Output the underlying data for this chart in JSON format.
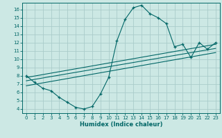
{
  "title": "",
  "xlabel": "Humidex (Indice chaleur)",
  "bg_color": "#cce8e4",
  "grid_color": "#aaccca",
  "line_color": "#006666",
  "xlim": [
    -0.5,
    23.5
  ],
  "ylim": [
    3.5,
    16.8
  ],
  "xticks": [
    0,
    1,
    2,
    3,
    4,
    5,
    6,
    7,
    8,
    9,
    10,
    11,
    12,
    13,
    14,
    15,
    16,
    17,
    18,
    19,
    20,
    21,
    22,
    23
  ],
  "yticks": [
    4,
    5,
    6,
    7,
    8,
    9,
    10,
    11,
    12,
    13,
    14,
    15,
    16
  ],
  "curve_x": [
    0,
    1,
    2,
    3,
    4,
    5,
    6,
    7,
    8,
    9,
    10,
    11,
    12,
    13,
    14,
    15,
    16,
    17,
    18,
    19,
    20,
    21,
    22,
    23
  ],
  "curve_y": [
    8.0,
    7.2,
    6.5,
    6.2,
    5.4,
    4.8,
    4.2,
    4.0,
    4.3,
    5.8,
    7.8,
    12.2,
    14.8,
    16.2,
    16.5,
    15.5,
    15.0,
    14.3,
    11.5,
    11.8,
    10.2,
    12.0,
    11.2,
    12.0
  ],
  "line1_x": [
    0,
    23
  ],
  "line1_y": [
    7.8,
    11.8
  ],
  "line2_x": [
    0,
    23
  ],
  "line2_y": [
    7.4,
    11.3
  ],
  "line3_x": [
    0,
    23
  ],
  "line3_y": [
    6.8,
    10.8
  ]
}
